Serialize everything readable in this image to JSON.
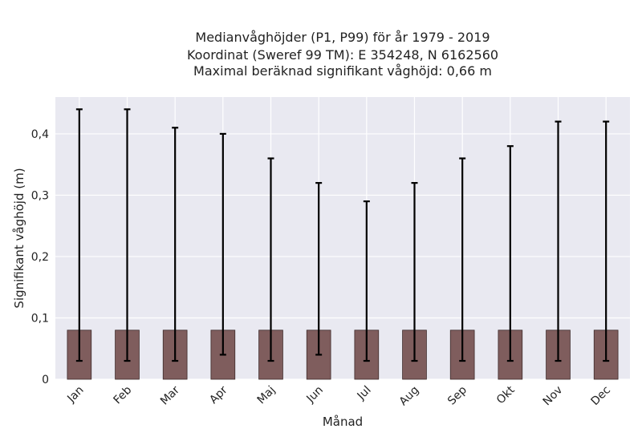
{
  "chart_data": {
    "type": "bar",
    "title_lines": [
      "Medianvåghöjder (P1, P99) för år 1979 - 2019",
      "Koordinat (Sweref 99 TM): E 354248, N 6162560",
      "Maximal beräknad signifikant våghöjd: 0,66 m"
    ],
    "xlabel": "Månad",
    "ylabel": "Signifikant våghöjd (m)",
    "categories": [
      "Jan",
      "Feb",
      "Mar",
      "Apr",
      "Maj",
      "Jun",
      "Jul",
      "Aug",
      "Sep",
      "Okt",
      "Nov",
      "Dec"
    ],
    "series": [
      {
        "values": [
          0.08,
          0.08,
          0.08,
          0.08,
          0.08,
          0.08,
          0.08,
          0.08,
          0.08,
          0.08,
          0.08,
          0.08
        ],
        "p1": [
          0.03,
          0.03,
          0.03,
          0.04,
          0.03,
          0.04,
          0.03,
          0.03,
          0.03,
          0.03,
          0.03,
          0.03
        ],
        "p99": [
          0.44,
          0.44,
          0.41,
          0.4,
          0.36,
          0.32,
          0.29,
          0.32,
          0.36,
          0.38,
          0.42,
          0.42
        ]
      }
    ],
    "ylim": [
      0,
      0.46
    ],
    "yticks": [
      0,
      0.1,
      0.2,
      0.3,
      0.4
    ],
    "ytick_labels": [
      "0",
      "0,1",
      "0,2",
      "0,3",
      "0,4"
    ],
    "grid": true,
    "colors": {
      "bar_fill": "#7f5d5d",
      "bar_edge": "#3d2a2a",
      "error_bar": "#000000",
      "plot_background": "#e9e9f1",
      "grid": "#ffffff"
    }
  }
}
